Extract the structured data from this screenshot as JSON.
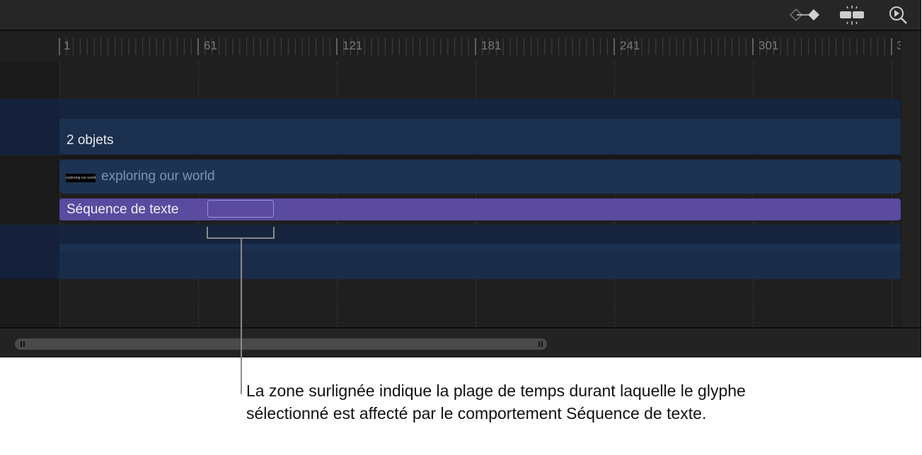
{
  "toolbar": {
    "icons": [
      "keyframe-diamond-icon",
      "split-icon",
      "zoom-play-icon"
    ]
  },
  "ruler": {
    "labels": [
      "1",
      "61",
      "121",
      "181",
      "241",
      "301",
      "3"
    ]
  },
  "tracks": {
    "group_label": "2 objets",
    "text_clip_label": "exploring our world",
    "thumbnail_text": "exploring our world",
    "behavior_label": "Séquence de texte"
  },
  "colors": {
    "behavior": "#5a4aa0",
    "group": "#1b2f4f",
    "clip": "#1e3353",
    "highlight_border": "#9b8fd6"
  },
  "callout": {
    "text": "La zone surlignée indique la plage de temps durant laquelle le glyphe sélectionné est affecté par le comportement Séquence de texte."
  }
}
